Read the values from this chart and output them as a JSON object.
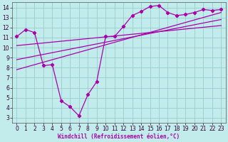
{
  "xlabel": "Windchill (Refroidissement éolien,°C)",
  "bg_color": "#c2ecec",
  "line_color": "#aa00aa",
  "grid_color": "#99cccc",
  "xlim": [
    -0.5,
    23.5
  ],
  "ylim": [
    2.5,
    14.5
  ],
  "xticks": [
    0,
    1,
    2,
    3,
    4,
    5,
    6,
    7,
    8,
    9,
    10,
    11,
    12,
    13,
    14,
    15,
    16,
    17,
    18,
    19,
    20,
    21,
    22,
    23
  ],
  "yticks": [
    3,
    4,
    5,
    6,
    7,
    8,
    9,
    10,
    11,
    12,
    13,
    14
  ],
  "curve1_x": [
    0,
    1,
    2,
    3,
    4,
    5,
    6,
    7,
    8,
    9,
    10,
    11,
    12,
    13,
    14,
    15,
    16,
    17,
    18,
    19,
    20,
    21,
    22,
    23
  ],
  "curve1_y": [
    11.1,
    11.8,
    11.5,
    8.2,
    8.3,
    4.7,
    4.1,
    3.2,
    5.3,
    6.6,
    11.1,
    11.1,
    12.1,
    13.2,
    13.6,
    14.1,
    14.2,
    13.5,
    13.2,
    13.3,
    13.5,
    13.8,
    13.7,
    13.8
  ],
  "line1_x": [
    0,
    23
  ],
  "line1_y": [
    7.8,
    13.5
  ],
  "line2_x": [
    0,
    23
  ],
  "line2_y": [
    8.8,
    12.8
  ],
  "line3_x": [
    0,
    23
  ],
  "line3_y": [
    10.2,
    12.2
  ],
  "tick_fontsize": 5.5,
  "xlabel_fontsize": 5.5
}
